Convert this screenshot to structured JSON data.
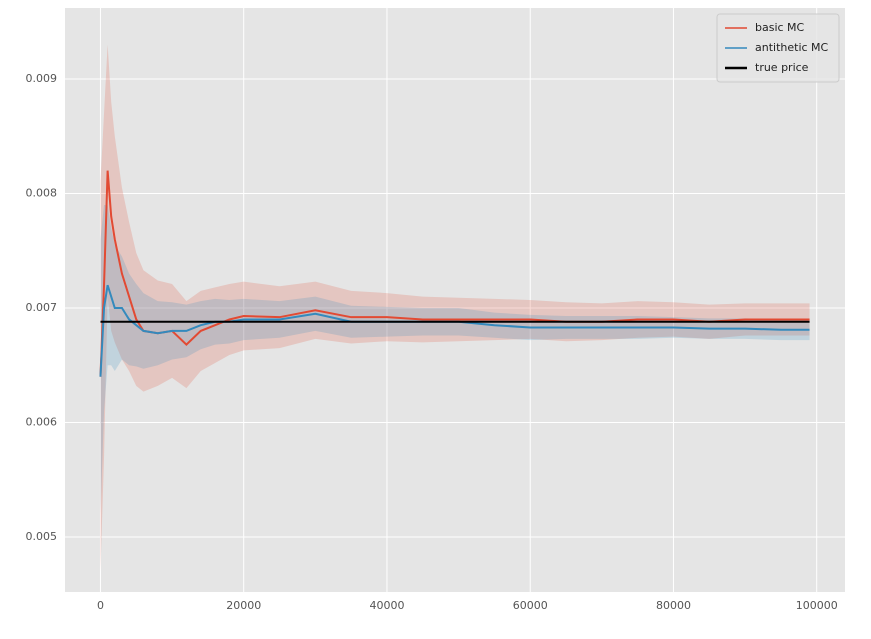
{
  "chart_data": {
    "type": "line",
    "x": [
      0,
      500,
      1000,
      1500,
      2000,
      3000,
      4000,
      5000,
      6000,
      8000,
      10000,
      12000,
      14000,
      16000,
      18000,
      20000,
      25000,
      30000,
      35000,
      40000,
      45000,
      50000,
      55000,
      60000,
      65000,
      70000,
      75000,
      80000,
      85000,
      90000,
      95000,
      99000
    ],
    "series": [
      {
        "name": "basic MC",
        "color": "#e24a33",
        "values": [
          0.0064,
          0.0072,
          0.0082,
          0.0078,
          0.0076,
          0.0073,
          0.0071,
          0.0069,
          0.0068,
          0.00678,
          0.0068,
          0.00668,
          0.0068,
          0.00685,
          0.0069,
          0.00693,
          0.00692,
          0.00698,
          0.00692,
          0.00692,
          0.0069,
          0.0069,
          0.0069,
          0.0069,
          0.00688,
          0.00688,
          0.0069,
          0.0069,
          0.00688,
          0.0069,
          0.0069,
          0.0069
        ],
        "errors": [
          0.0017,
          0.0015,
          0.0011,
          0.001,
          0.0009,
          0.00075,
          0.00065,
          0.00058,
          0.00053,
          0.00046,
          0.00041,
          0.00038,
          0.00035,
          0.00033,
          0.00031,
          0.0003,
          0.00027,
          0.00025,
          0.00023,
          0.00021,
          0.0002,
          0.00019,
          0.00018,
          0.00017,
          0.00017,
          0.00016,
          0.00016,
          0.00015,
          0.00015,
          0.00014,
          0.00014,
          0.00014
        ]
      },
      {
        "name": "antithetic MC",
        "color": "#348abd",
        "values": [
          0.0064,
          0.007,
          0.0072,
          0.0071,
          0.007,
          0.007,
          0.0069,
          0.00685,
          0.0068,
          0.00678,
          0.0068,
          0.0068,
          0.00685,
          0.00688,
          0.00688,
          0.0069,
          0.0069,
          0.00695,
          0.00688,
          0.00688,
          0.00688,
          0.00688,
          0.00685,
          0.00683,
          0.00683,
          0.00683,
          0.00683,
          0.00683,
          0.00682,
          0.00682,
          0.00681,
          0.00681
        ],
        "errors": [
          0.0012,
          0.0009,
          0.0007,
          0.0006,
          0.00055,
          0.00045,
          0.0004,
          0.00036,
          0.00033,
          0.00028,
          0.00025,
          0.00023,
          0.00021,
          0.0002,
          0.00019,
          0.00018,
          0.00016,
          0.00015,
          0.00014,
          0.00013,
          0.00012,
          0.00012,
          0.00011,
          0.00011,
          0.0001,
          0.0001,
          0.0001,
          9e-05,
          9e-05,
          9e-05,
          9e-05,
          9e-05
        ]
      }
    ],
    "reference_line": {
      "name": "true price",
      "color": "#000000",
      "value": 0.00688,
      "x": [
        0,
        99000
      ]
    },
    "xlim": [
      -4950,
      103950
    ],
    "xticks": [
      0,
      20000,
      40000,
      60000,
      80000,
      100000
    ],
    "ylim": [
      0.00452,
      0.00962
    ],
    "yticks": [
      0.005,
      0.006,
      0.007,
      0.008,
      0.009
    ],
    "grid": true,
    "legend": "upper right"
  }
}
